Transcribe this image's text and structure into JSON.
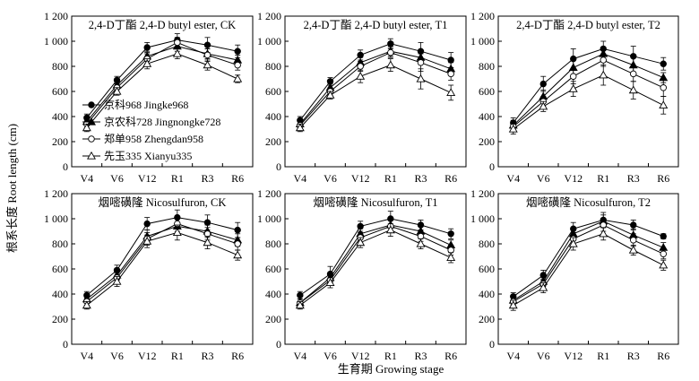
{
  "figure": {
    "y_axis_title": "根系长度 Root length (cm)",
    "x_axis_title": "生育期 Growing stage"
  },
  "legend": [
    {
      "name": "京科968  Jingke968",
      "marker": "filled-circle"
    },
    {
      "name": "京农科728  Jingnongke728",
      "marker": "filled-triangle"
    },
    {
      "name": "郑单958  Zhengdan958",
      "marker": "open-circle"
    },
    {
      "name": "先玉335  Xianyu335",
      "marker": "open-triangle"
    }
  ],
  "chart_data": [
    {
      "type": "line",
      "title": "2,4-D丁酯  2,4-D butyl ester, CK",
      "categories": [
        "V4",
        "V6",
        "V12",
        "R1",
        "R3",
        "R6"
      ],
      "ylim": [
        0,
        1200
      ],
      "yticks": [
        0,
        200,
        400,
        600,
        800,
        1000,
        1200
      ],
      "yticklabels": [
        "0",
        "200",
        "400",
        "600",
        "800",
        "1 000",
        "1 200"
      ],
      "series": [
        {
          "name": "京科968  Jingke968",
          "marker": "filled-circle",
          "values": [
            390,
            690,
            950,
            1010,
            970,
            920
          ],
          "errors": [
            30,
            30,
            40,
            50,
            60,
            50
          ]
        },
        {
          "name": "京农科728  Jingnongke728",
          "marker": "filled-triangle",
          "values": [
            360,
            650,
            880,
            960,
            900,
            850
          ],
          "errors": [
            30,
            30,
            40,
            40,
            40,
            40
          ]
        },
        {
          "name": "郑单958  Zhengdan958",
          "marker": "open-circle",
          "values": [
            340,
            630,
            860,
            990,
            890,
            810
          ],
          "errors": [
            30,
            30,
            40,
            40,
            50,
            40
          ]
        },
        {
          "name": "先玉335  Xianyu335",
          "marker": "open-triangle",
          "values": [
            310,
            600,
            820,
            900,
            810,
            700
          ],
          "errors": [
            30,
            30,
            40,
            40,
            40,
            30
          ]
        }
      ]
    },
    {
      "type": "line",
      "title": "2,4-D丁酯  2,4-D butyl ester, T1",
      "categories": [
        "V4",
        "V6",
        "V12",
        "R1",
        "R3",
        "R6"
      ],
      "ylim": [
        0,
        1200
      ],
      "yticks": [
        0,
        200,
        400,
        600,
        800,
        1000,
        1200
      ],
      "yticklabels": [
        "0",
        "200",
        "400",
        "600",
        "800",
        "1 000",
        "1 200"
      ],
      "series": [
        {
          "name": "京科968  Jingke968",
          "marker": "filled-circle",
          "values": [
            370,
            680,
            890,
            980,
            920,
            850
          ],
          "errors": [
            30,
            30,
            40,
            40,
            70,
            60
          ]
        },
        {
          "name": "京农科728  Jingnongke728",
          "marker": "filled-triangle",
          "values": [
            340,
            630,
            830,
            920,
            870,
            780
          ],
          "errors": [
            30,
            30,
            40,
            40,
            50,
            50
          ]
        },
        {
          "name": "郑单958  Zhengdan958",
          "marker": "open-circle",
          "values": [
            330,
            600,
            800,
            910,
            830,
            740
          ],
          "errors": [
            30,
            30,
            40,
            40,
            70,
            50
          ]
        },
        {
          "name": "先玉335  Xianyu335",
          "marker": "open-triangle",
          "values": [
            310,
            570,
            720,
            810,
            700,
            590
          ],
          "errors": [
            30,
            30,
            50,
            50,
            80,
            60
          ]
        }
      ]
    },
    {
      "type": "line",
      "title": "2,4-D丁酯  2,4-D butyl ester, T2",
      "categories": [
        "V4",
        "V6",
        "V12",
        "R1",
        "R3",
        "R6"
      ],
      "ylim": [
        0,
        1200
      ],
      "yticks": [
        0,
        200,
        400,
        600,
        800,
        1000,
        1200
      ],
      "yticklabels": [
        "0",
        "200",
        "400",
        "600",
        "800",
        "1 000",
        "1 200"
      ],
      "series": [
        {
          "name": "京科968  Jingke968",
          "marker": "filled-circle",
          "values": [
            350,
            660,
            860,
            940,
            880,
            820
          ],
          "errors": [
            40,
            60,
            80,
            60,
            80,
            50
          ]
        },
        {
          "name": "京农科728  Jingnongke728",
          "marker": "filled-triangle",
          "values": [
            330,
            560,
            790,
            900,
            810,
            710
          ],
          "errors": [
            40,
            50,
            60,
            50,
            60,
            40
          ]
        },
        {
          "name": "郑单958  Zhengdan958",
          "marker": "open-circle",
          "values": [
            320,
            520,
            720,
            850,
            740,
            630
          ],
          "errors": [
            40,
            40,
            60,
            50,
            60,
            70
          ]
        },
        {
          "name": "先玉335  Xianyu335",
          "marker": "open-triangle",
          "values": [
            300,
            480,
            620,
            730,
            610,
            490
          ],
          "errors": [
            40,
            40,
            60,
            80,
            70,
            70
          ]
        }
      ]
    },
    {
      "type": "line",
      "title": "烟嘧磺隆  Nicosulfuron, CK",
      "categories": [
        "V4",
        "V6",
        "V12",
        "R1",
        "R3",
        "R6"
      ],
      "ylim": [
        0,
        1200
      ],
      "yticks": [
        0,
        200,
        400,
        600,
        800,
        1000,
        1200
      ],
      "yticklabels": [
        "0",
        "200",
        "400",
        "600",
        "800",
        "1 000",
        "1 200"
      ],
      "series": [
        {
          "name": "京科968  Jingke968",
          "marker": "filled-circle",
          "values": [
            390,
            590,
            960,
            1010,
            970,
            910
          ],
          "errors": [
            30,
            40,
            50,
            60,
            60,
            60
          ]
        },
        {
          "name": "京农科728  Jingnongke728",
          "marker": "filled-triangle",
          "values": [
            360,
            550,
            860,
            940,
            900,
            830
          ],
          "errors": [
            30,
            40,
            50,
            70,
            50,
            50
          ]
        },
        {
          "name": "郑单958  Zhengdan958",
          "marker": "open-circle",
          "values": [
            340,
            530,
            840,
            960,
            880,
            800
          ],
          "errors": [
            30,
            40,
            50,
            60,
            50,
            50
          ]
        },
        {
          "name": "先玉335  Xianyu335",
          "marker": "open-triangle",
          "values": [
            310,
            500,
            820,
            890,
            810,
            710
          ],
          "errors": [
            30,
            40,
            50,
            60,
            50,
            40
          ]
        }
      ]
    },
    {
      "type": "line",
      "title": "烟嘧磺隆  Nicosulfuron, T1",
      "categories": [
        "V4",
        "V6",
        "V12",
        "R1",
        "R3",
        "R6"
      ],
      "ylim": [
        0,
        1200
      ],
      "yticks": [
        0,
        200,
        400,
        600,
        800,
        1000,
        1200
      ],
      "yticklabels": [
        "0",
        "200",
        "400",
        "600",
        "800",
        "1 000",
        "1 200"
      ],
      "series": [
        {
          "name": "京科968  Jingke968",
          "marker": "filled-circle",
          "values": [
            390,
            560,
            940,
            1000,
            950,
            880
          ],
          "errors": [
            30,
            60,
            40,
            60,
            40,
            40
          ]
        },
        {
          "name": "京农科728  Jingnongke728",
          "marker": "filled-triangle",
          "values": [
            330,
            530,
            880,
            950,
            900,
            790
          ],
          "errors": [
            30,
            40,
            40,
            50,
            40,
            40
          ]
        },
        {
          "name": "郑单958  Zhengdan958",
          "marker": "open-circle",
          "values": [
            330,
            510,
            850,
            940,
            860,
            750
          ],
          "errors": [
            30,
            40,
            40,
            50,
            40,
            40
          ]
        },
        {
          "name": "先玉335  Xianyu335",
          "marker": "open-triangle",
          "values": [
            310,
            490,
            810,
            910,
            800,
            690
          ],
          "errors": [
            30,
            40,
            40,
            50,
            40,
            40
          ]
        }
      ]
    },
    {
      "type": "line",
      "title": "烟嘧磺隆  Nicosulfuron, T2",
      "categories": [
        "V4",
        "V6",
        "V12",
        "R1",
        "R3",
        "R6"
      ],
      "ylim": [
        0,
        1200
      ],
      "yticks": [
        0,
        200,
        400,
        600,
        800,
        1000,
        1200
      ],
      "yticklabels": [
        "0",
        "200",
        "400",
        "600",
        "800",
        "1 000",
        "1 200"
      ],
      "series": [
        {
          "name": "京科968  Jingke968",
          "marker": "filled-circle",
          "values": [
            380,
            550,
            920,
            990,
            950,
            860
          ],
          "errors": [
            30,
            40,
            50,
            60,
            40,
            20
          ]
        },
        {
          "name": "京农科728  Jingnongke728",
          "marker": "filled-triangle",
          "values": [
            350,
            500,
            880,
            980,
            870,
            770
          ],
          "errors": [
            30,
            40,
            50,
            50,
            50,
            40
          ]
        },
        {
          "name": "郑单958  Zhengdan958",
          "marker": "open-circle",
          "values": [
            340,
            480,
            840,
            950,
            830,
            720
          ],
          "errors": [
            30,
            40,
            50,
            50,
            50,
            40
          ]
        },
        {
          "name": "先玉335  Xianyu335",
          "marker": "open-triangle",
          "values": [
            310,
            450,
            800,
            880,
            750,
            630
          ],
          "errors": [
            40,
            40,
            50,
            50,
            40,
            40
          ]
        }
      ]
    }
  ]
}
